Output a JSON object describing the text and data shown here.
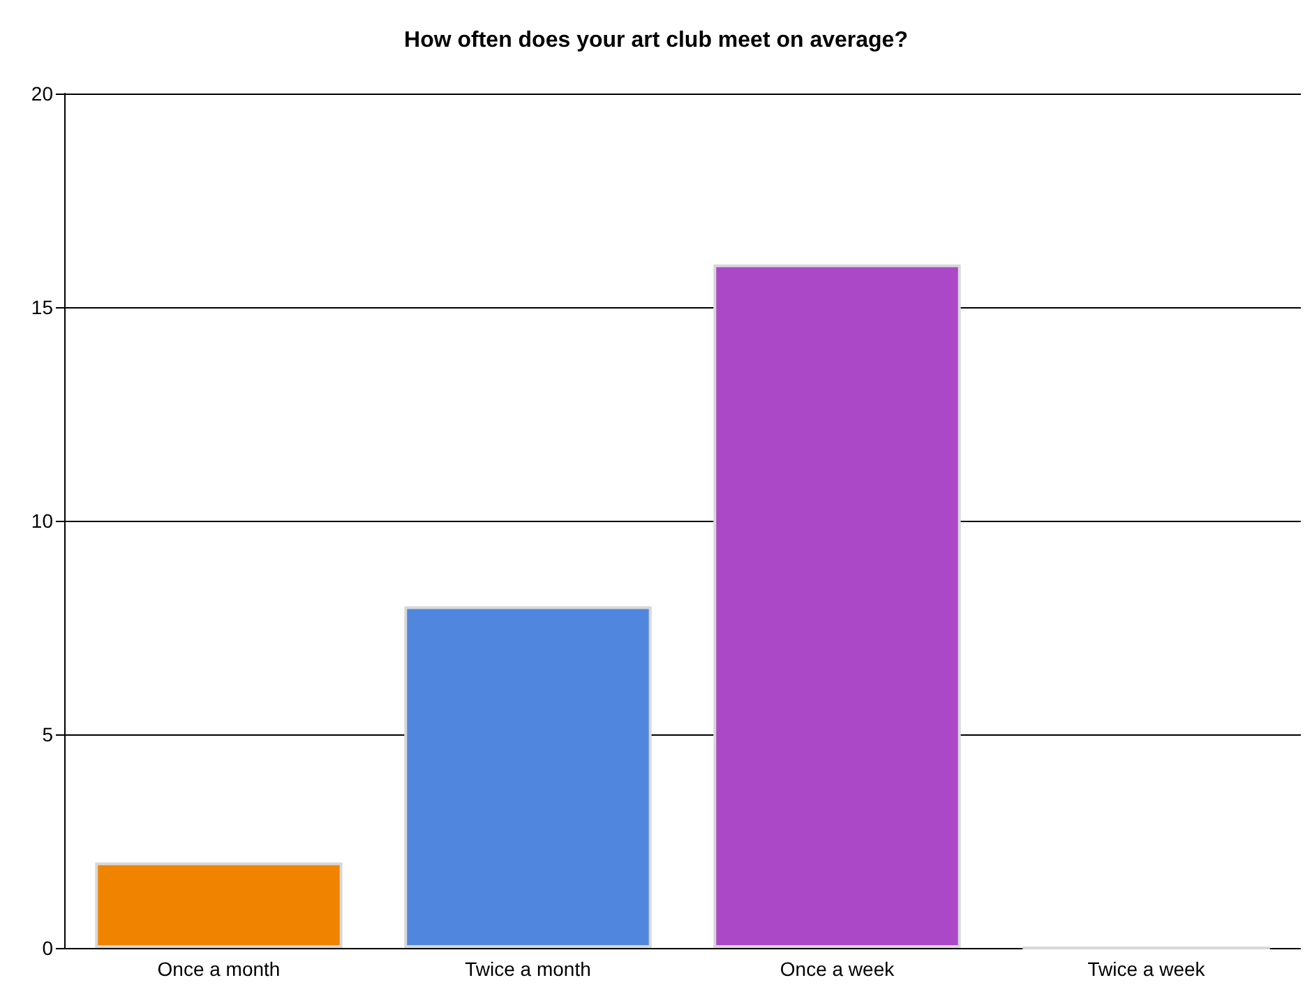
{
  "chart_data": {
    "type": "bar",
    "title": "How often does your art club meet on average?",
    "categories": [
      "Once a month",
      "Twice a month",
      "Once a week",
      "Twice a week"
    ],
    "values": [
      2,
      8,
      16,
      0
    ],
    "colors": [
      "#f08400",
      "#5186de",
      "#aa48c8",
      "#d0d0d0"
    ],
    "ylim": [
      0,
      20
    ],
    "yticks": [
      0,
      5,
      10,
      15,
      20
    ],
    "grid": "y"
  }
}
